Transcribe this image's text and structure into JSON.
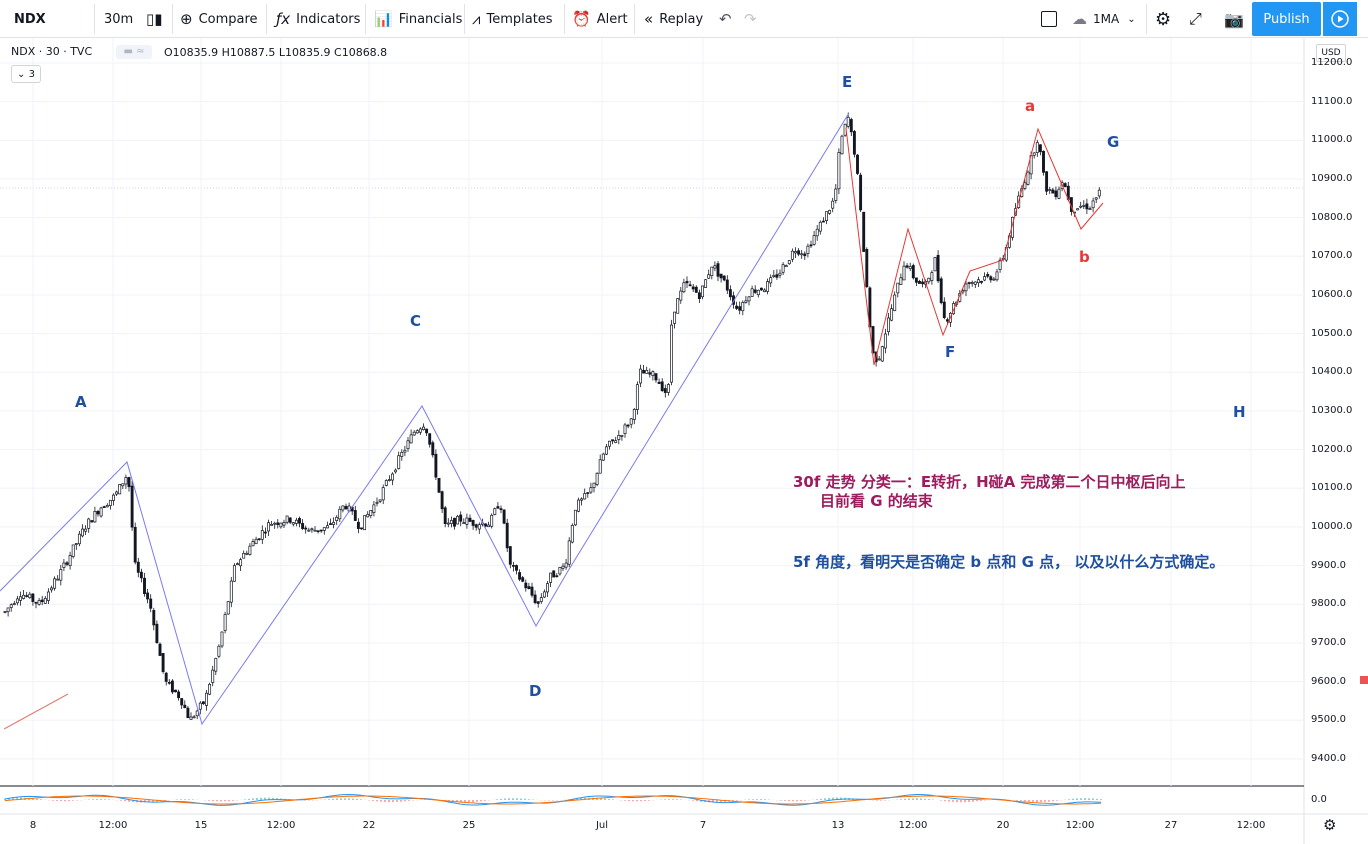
{
  "toolbar": {
    "symbol": "NDX",
    "interval": "30m",
    "compare": "Compare",
    "indicators": "Indicators",
    "financials": "Financials",
    "templates": "Templates",
    "alert": "Alert",
    "replay": "Replay",
    "layout_name": "1MA",
    "publish": "Publish"
  },
  "legend": {
    "symbol_line": "NDX · 30 · TVC",
    "ohlc": "O10835.9 H10887.5 L10835.9 C10868.8",
    "collapse_count": "3"
  },
  "price_axis": {
    "currency": "USD",
    "ticks": [
      "11200.0",
      "11100.0",
      "11000.0",
      "10900.0",
      "10800.0",
      "10700.0",
      "10600.0",
      "10500.0",
      "10400.0",
      "10300.0",
      "10200.0",
      "10100.0",
      "10000.0",
      "9900.0",
      "9800.0",
      "9700.0",
      "9600.0",
      "9500.0",
      "9400.0"
    ],
    "indicator_tick": "0.0"
  },
  "time_axis": [
    "8",
    "12:00",
    "15",
    "12:00",
    "22",
    "25",
    "Jul",
    "7",
    "13",
    "12:00",
    "20",
    "12:00",
    "27",
    "12:00"
  ],
  "wave_labels": {
    "A": "A",
    "C": "C",
    "D": "D",
    "E": "E",
    "F": "F",
    "G": "G",
    "H": "H",
    "a": "a",
    "b": "b"
  },
  "annotations": {
    "line1": "30f 走势 分类一：E转折，H碰A 完成第二个日中枢后向上",
    "line2": "目前看 G 的结束",
    "line3": "5f 角度，看明天是否确定 b 点和 G 点， 以及以什么方式确定。"
  },
  "colors": {
    "publish_bg": "#2196f3",
    "blue_wave": "#7b7bf0",
    "red_wave": "#e53935",
    "label_blue": "#1e4fa0",
    "annotation_purple": "#9c1c5d"
  }
}
